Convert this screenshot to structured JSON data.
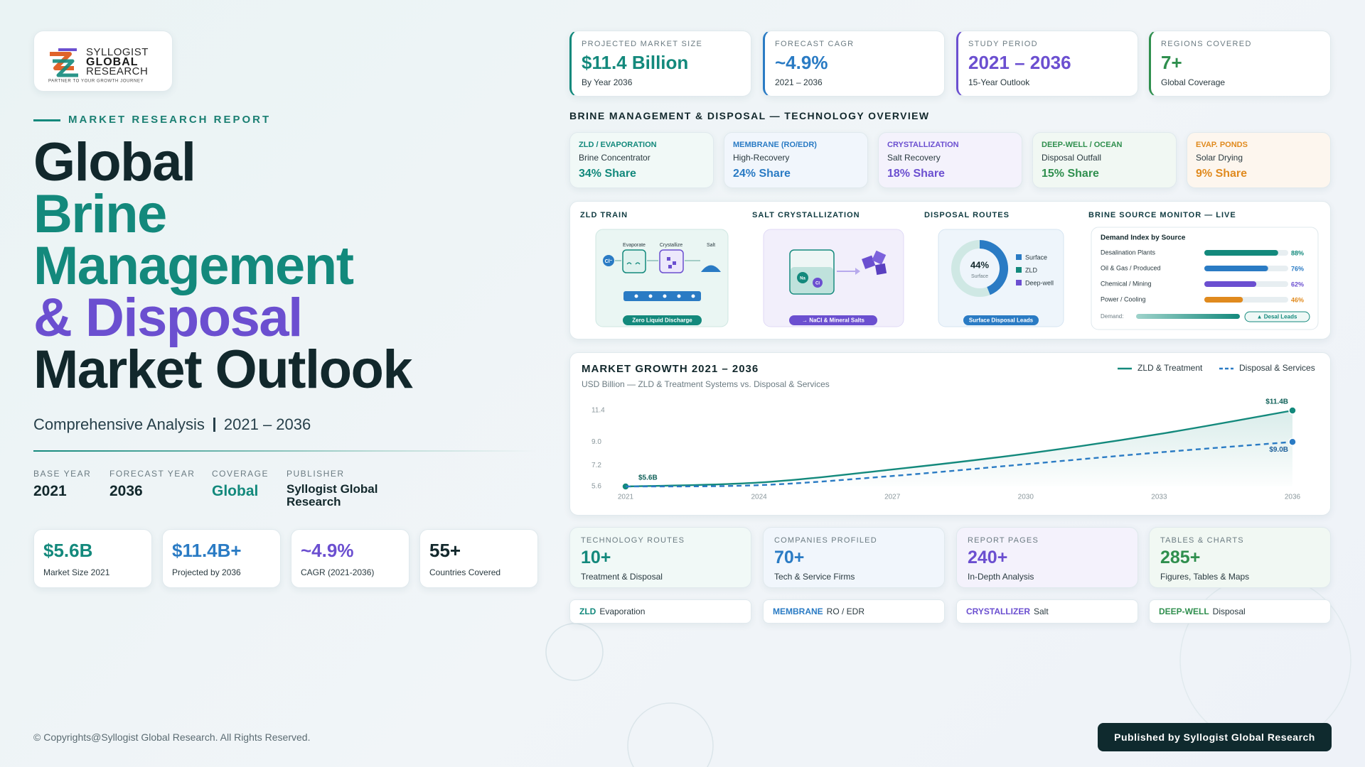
{
  "logo": {
    "line1": "SYLLOGIST",
    "line2": "GLOBAL",
    "line3": "RESEARCH",
    "tagline": "PARTNER TO YOUR GROWTH JOURNEY"
  },
  "hero": {
    "eyebrow": "MARKET RESEARCH REPORT",
    "title_lines": [
      "Global",
      "Brine",
      "Management",
      "& Disposal",
      "Market Outlook"
    ],
    "subtitle": "Comprehensive Analysis",
    "period": "2021 – 2036"
  },
  "meta": [
    {
      "label": "BASE YEAR",
      "value": "2021"
    },
    {
      "label": "FORECAST YEAR",
      "value": "2036"
    },
    {
      "label": "COVERAGE",
      "value": "Global"
    },
    {
      "label": "PUBLISHER",
      "value": "Syllogist Global Research"
    }
  ],
  "stats": [
    {
      "value": "$5.6B",
      "label": "Market Size 2021"
    },
    {
      "value": "$11.4B+",
      "label": "Projected by 2036"
    },
    {
      "value": "~4.9%",
      "label": "CAGR (2021-2036)"
    },
    {
      "value": "55+",
      "label": "Countries Covered"
    }
  ],
  "kpis": [
    {
      "label": "PROJECTED MARKET SIZE",
      "value": "$11.4 Billion",
      "note": "By Year 2036"
    },
    {
      "label": "FORECAST CAGR",
      "value": "~4.9%",
      "note": "2021 – 2036"
    },
    {
      "label": "STUDY PERIOD",
      "value": "2021 – 2036",
      "note": "15-Year Outlook"
    },
    {
      "label": "REGIONS COVERED",
      "value": "7+",
      "note": "Global Coverage"
    }
  ],
  "tech_heading": "BRINE MANAGEMENT & DISPOSAL — TECHNOLOGY OVERVIEW",
  "tech": [
    {
      "tag": "ZLD / EVAPORATION",
      "name": "Brine Concentrator",
      "share": "34% Share"
    },
    {
      "tag": "MEMBRANE (RO/EDR)",
      "name": "High-Recovery",
      "share": "24% Share"
    },
    {
      "tag": "CRYSTALLIZATION",
      "name": "Salt Recovery",
      "share": "18% Share"
    },
    {
      "tag": "DEEP-WELL / OCEAN",
      "name": "Disposal Outfall",
      "share": "15% Share"
    },
    {
      "tag": "EVAP. PONDS",
      "name": "Solar Drying",
      "share": "9% Share"
    }
  ],
  "panel": {
    "zld": {
      "title": "ZLD TRAIN",
      "steps": [
        "Evaporate",
        "Crystallize",
        "Salt"
      ],
      "ion": "Cl⁻",
      "pill": "Zero Liquid Discharge"
    },
    "salt": {
      "title": "SALT CRYSTALLIZATION",
      "ions": [
        "Na",
        "Cl"
      ],
      "pill": "→ NaCl & Mineral Salts"
    },
    "routes": {
      "title": "DISPOSAL ROUTES",
      "share": {
        "value": 44,
        "label": "44%"
      },
      "center_caption": "Surface",
      "legend": [
        "Surface",
        "ZLD",
        "Deep-well"
      ],
      "pill": "Surface Disposal Leads"
    },
    "monitor": {
      "title": "BRINE SOURCE MONITOR — LIVE",
      "chart_title": "Demand Index by Source",
      "rows": [
        {
          "name": "Desalination Plants",
          "value": 88,
          "value_label": "88%",
          "color": "#13897c"
        },
        {
          "name": "Oil & Gas / Produced",
          "value": 76,
          "value_label": "76%",
          "color": "#2a7bc4"
        },
        {
          "name": "Chemical / Mining",
          "value": 62,
          "value_label": "62%",
          "color": "#6b4fd0"
        },
        {
          "name": "Power / Cooling",
          "value": 46,
          "value_label": "46%",
          "color": "#e08a1e"
        }
      ],
      "xlim": [
        0,
        100
      ],
      "demand_label": "Demand:",
      "pill": "▲ Desal Leads"
    }
  },
  "chart_data": {
    "type": "line",
    "title": "MARKET GROWTH 2021 – 2036",
    "subtitle": "USD Billion — ZLD & Treatment Systems vs. Disposal & Services",
    "x": [
      2021,
      2024,
      2027,
      2030,
      2033,
      2036
    ],
    "xlim": [
      2021,
      2036
    ],
    "xticks": [
      2021,
      2024,
      2027,
      2030,
      2033,
      2036
    ],
    "ylim": [
      5.6,
      11.4
    ],
    "yticks": [
      5.6,
      7.2,
      {
        "value": 9,
        "label": "9.0"
      },
      11.4
    ],
    "grid": false,
    "legend": "top-right",
    "series": [
      {
        "name": "ZLD & Treatment",
        "color": "#13897c",
        "dashed": false,
        "area": true,
        "values": [
          5.6,
          5.9,
          6.9,
          8.1,
          9.6,
          11.4
        ],
        "value_labels": [
          "$5.6B",
          null,
          null,
          null,
          null,
          "$11.4B"
        ]
      },
      {
        "name": "Disposal & Services",
        "color": "#2a7bc4",
        "dashed": true,
        "area": false,
        "values": [
          5.6,
          5.7,
          6.4,
          7.3,
          8.2,
          9.0
        ],
        "value_labels": [
          null,
          null,
          null,
          null,
          null,
          "$9.0B"
        ]
      }
    ]
  },
  "counts": [
    {
      "label": "TECHNOLOGY ROUTES",
      "value": "10+",
      "note": "Treatment & Disposal"
    },
    {
      "label": "COMPANIES PROFILED",
      "value": "70+",
      "note": "Tech & Service Firms"
    },
    {
      "label": "REPORT PAGES",
      "value": "240+",
      "note": "In-Depth Analysis"
    },
    {
      "label": "TABLES & CHARTS",
      "value": "285+",
      "note": "Figures, Tables & Maps"
    }
  ],
  "tags": [
    {
      "tag": "ZLD",
      "text": "Evaporation"
    },
    {
      "tag": "MEMBRANE",
      "text": "RO / EDR"
    },
    {
      "tag": "CRYSTALLIZER",
      "text": "Salt"
    },
    {
      "tag": "DEEP-WELL",
      "text": "Disposal"
    }
  ],
  "footer": {
    "copyright": "© Copyrights@Syllogist Global Research. All Rights Reserved.",
    "publisher_button": "Published by Syllogist Global Research"
  }
}
